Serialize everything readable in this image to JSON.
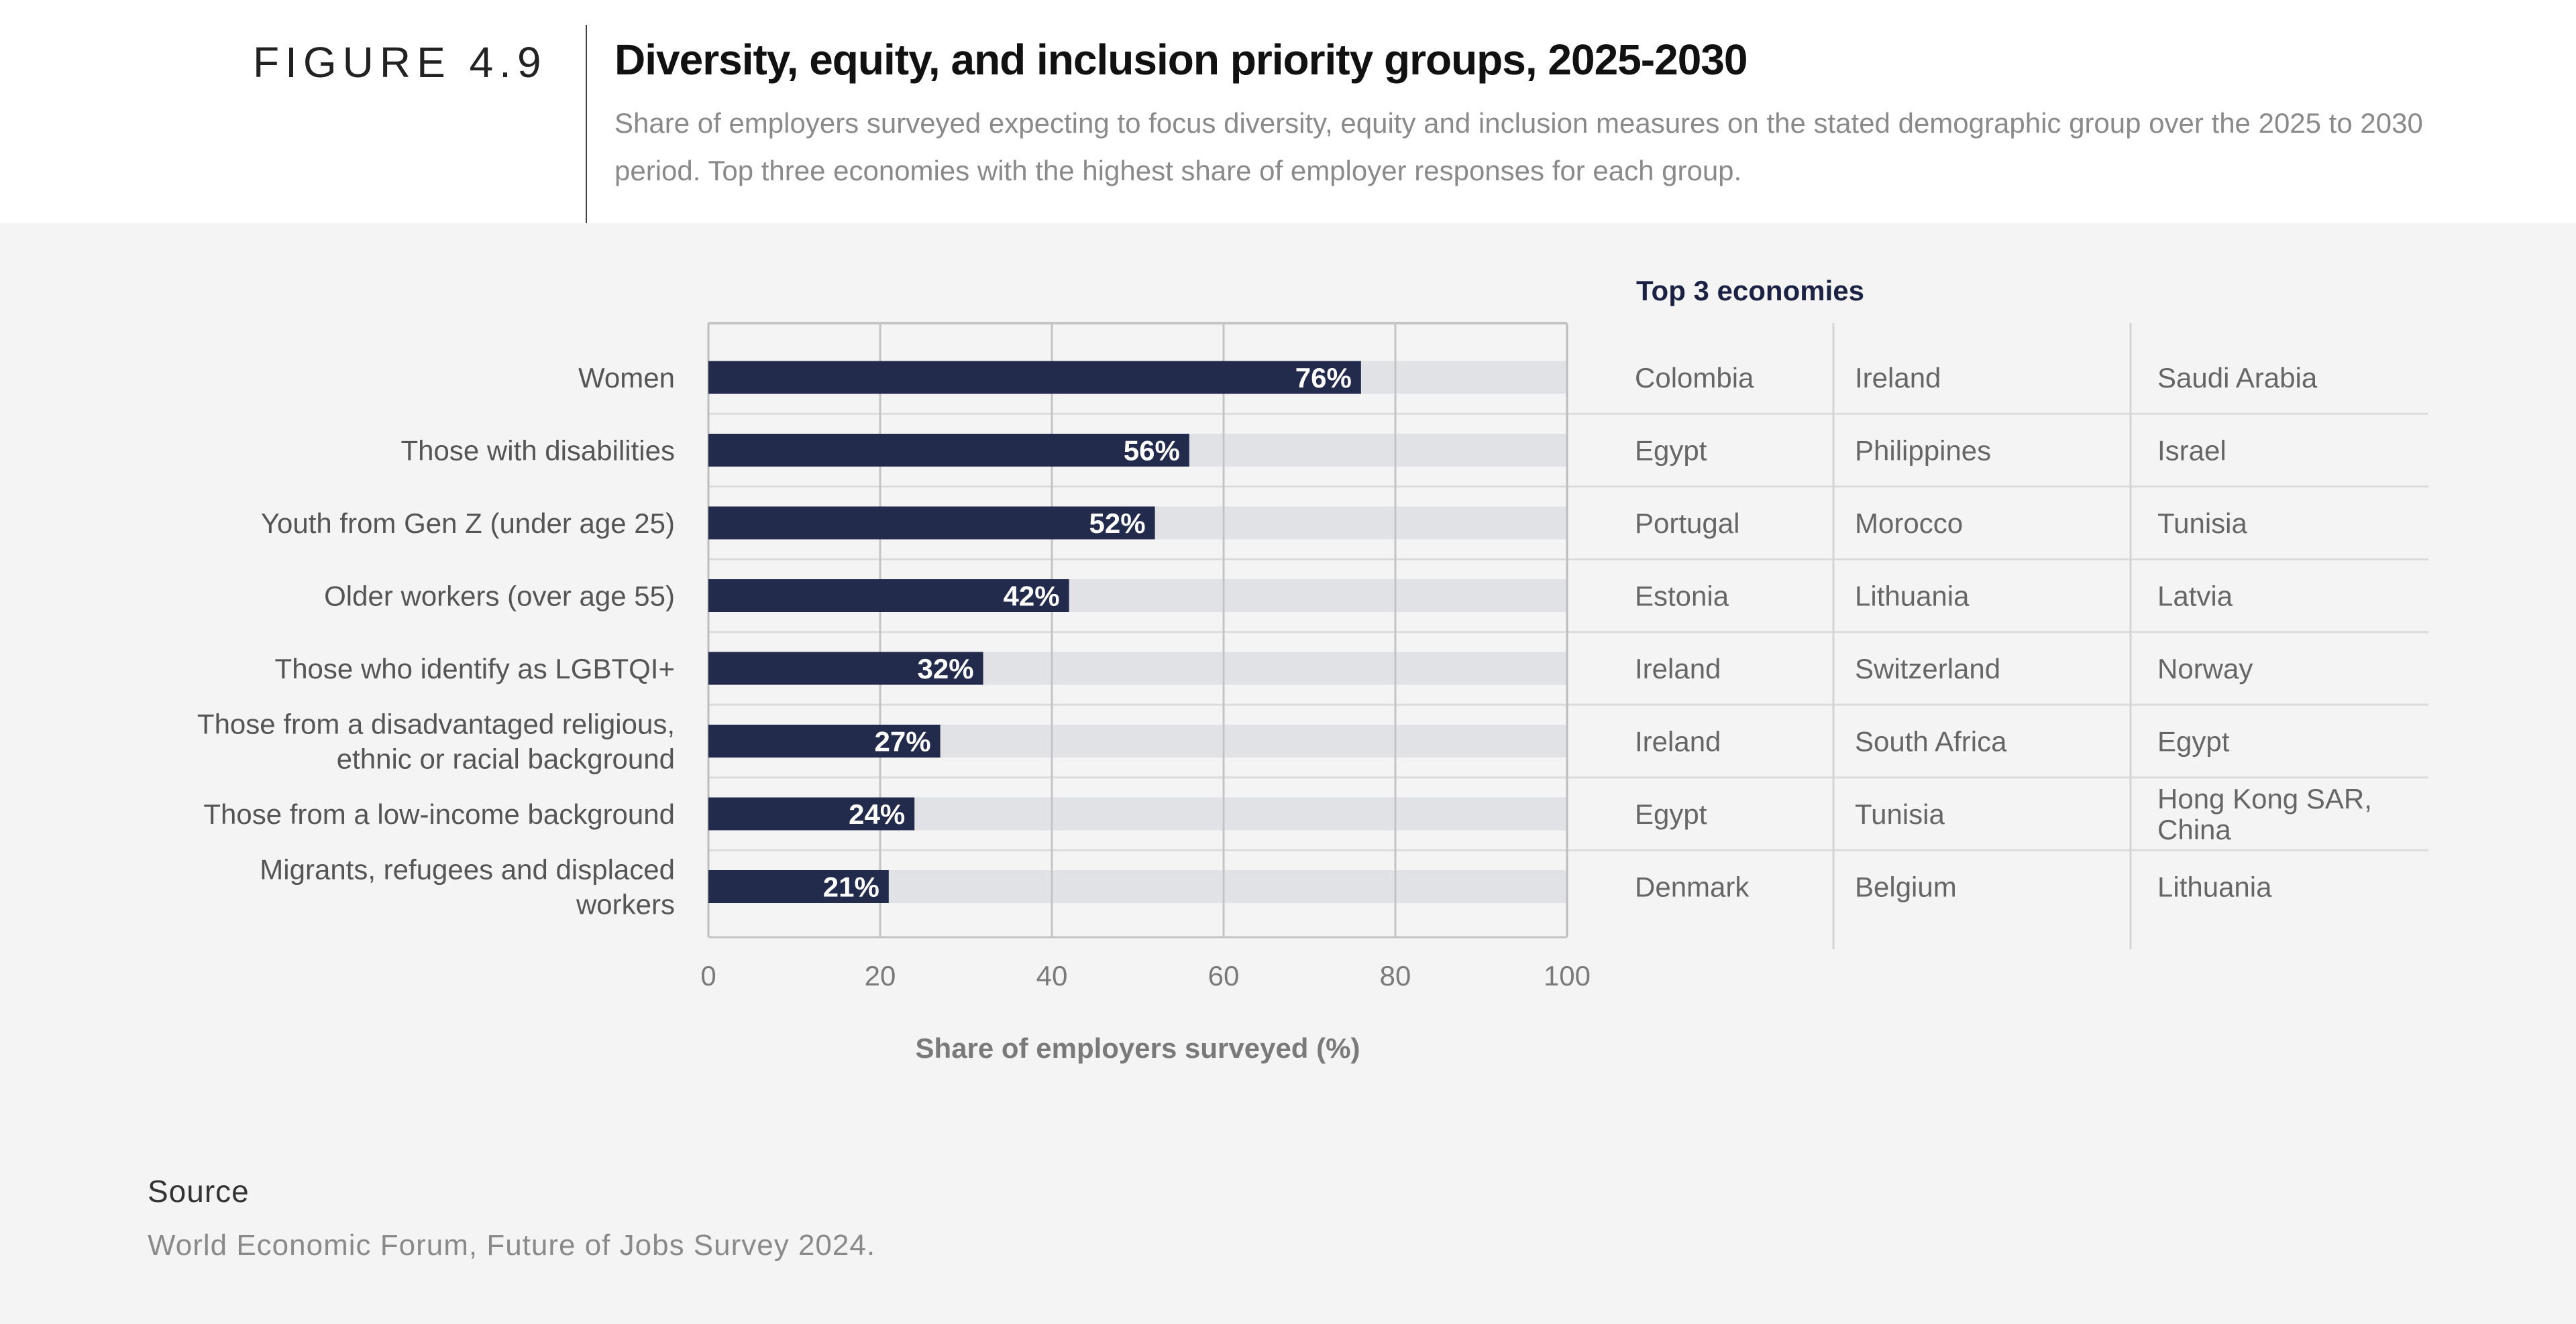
{
  "header": {
    "figure_label": "FIGURE 4.9",
    "title": "Diversity, equity, and inclusion priority groups, 2025-2030",
    "subtitle": "Share of employers surveyed expecting to focus diversity, equity and inclusion measures on the stated demographic group over the 2025 to 2030 period. Top three economies with the highest share of employer responses for each group."
  },
  "chart_data": {
    "type": "bar",
    "orientation": "horizontal",
    "categories": [
      [
        "Women"
      ],
      [
        "Those with disabilities"
      ],
      [
        "Youth from Gen Z (under age 25)"
      ],
      [
        "Older workers (over age 55)"
      ],
      [
        "Those who identify as LGBTQI+"
      ],
      [
        "Those from a disadvantaged religious,",
        "ethnic or racial background"
      ],
      [
        "Those from a low-income background"
      ],
      [
        "Migrants, refugees and displaced",
        "workers"
      ]
    ],
    "values": [
      76,
      56,
      52,
      42,
      32,
      27,
      24,
      21
    ],
    "data_labels": [
      "76%",
      "56%",
      "52%",
      "42%",
      "32%",
      "27%",
      "24%",
      "21%"
    ],
    "xlabel": "Share of employers surveyed (%)",
    "xlim": [
      0,
      100
    ],
    "xticks": [
      "0",
      "20",
      "40",
      "60",
      "80",
      "100"
    ],
    "grid": true,
    "colors": {
      "bar": "#232b4d",
      "track": "#e1e2e6"
    }
  },
  "table": {
    "heading": "Top 3 economies",
    "rows": [
      [
        [
          "Colombia"
        ],
        [
          "Ireland"
        ],
        [
          "Saudi Arabia"
        ]
      ],
      [
        [
          "Egypt"
        ],
        [
          "Philippines"
        ],
        [
          "Israel"
        ]
      ],
      [
        [
          "Portugal"
        ],
        [
          "Morocco"
        ],
        [
          "Tunisia"
        ]
      ],
      [
        [
          "Estonia"
        ],
        [
          "Lithuania"
        ],
        [
          "Latvia"
        ]
      ],
      [
        [
          "Ireland"
        ],
        [
          "Switzerland"
        ],
        [
          "Norway"
        ]
      ],
      [
        [
          "Ireland"
        ],
        [
          "South Africa"
        ],
        [
          "Egypt"
        ]
      ],
      [
        [
          "Egypt"
        ],
        [
          "Tunisia"
        ],
        [
          "Hong Kong SAR,",
          "China"
        ]
      ],
      [
        [
          "Denmark"
        ],
        [
          "Belgium"
        ],
        [
          "Lithuania"
        ]
      ]
    ]
  },
  "source": {
    "heading": "Source",
    "text": "World Economic Forum, Future of Jobs Survey 2024."
  }
}
